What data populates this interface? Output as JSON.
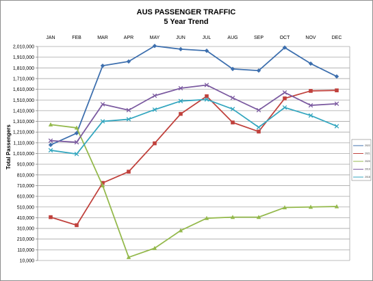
{
  "chart_data": {
    "type": "line",
    "title": "AUS PASSENGER TRAFFIC",
    "subtitle": "5 Year Trend",
    "xlabel": "",
    "ylabel": "Total Passengers",
    "categories": [
      "JAN",
      "FEB",
      "MAR",
      "APR",
      "MAY",
      "JUN",
      "JUL",
      "AUG",
      "SEP",
      "OCT",
      "NOV",
      "DEC"
    ],
    "ylim": [
      10000,
      2010000
    ],
    "yticks": [
      10000,
      110000,
      210000,
      310000,
      410000,
      510000,
      610000,
      710000,
      810000,
      910000,
      1010000,
      1110000,
      1210000,
      1310000,
      1410000,
      1510000,
      1610000,
      1710000,
      1810000,
      1910000,
      2010000
    ],
    "ytick_labels": [
      "10,000",
      "110,000",
      "210,000",
      "310,000",
      "410,000",
      "510,000",
      "610,000",
      "710,000",
      "810,000",
      "910,000",
      "1,010,000",
      "1,110,000",
      "1,210,000",
      "1,310,000",
      "1,410,000",
      "1,510,000",
      "1,610,000",
      "1,710,000",
      "1,810,000",
      "1,910,000",
      "2,010,000"
    ],
    "grid": true,
    "legend_position": "right",
    "series": [
      {
        "name": "2022",
        "color": "#3d6fae",
        "marker": "diamond",
        "values": [
          1090000,
          1200000,
          1830000,
          1870000,
          2015000,
          1985000,
          1970000,
          1800000,
          1785000,
          2000000,
          1850000,
          1730000
        ]
      },
      {
        "name": "2021",
        "color": "#c0413c",
        "marker": "square",
        "values": [
          415000,
          340000,
          735000,
          840000,
          1105000,
          1380000,
          1545000,
          1300000,
          1215000,
          1525000,
          1595000,
          1600000
        ]
      },
      {
        "name": "2020",
        "color": "#94b94c",
        "marker": "triangle",
        "values": [
          1280000,
          1250000,
          710000,
          40000,
          125000,
          290000,
          405000,
          415000,
          415000,
          505000,
          510000,
          515000
        ]
      },
      {
        "name": "2019",
        "color": "#7b5aa0",
        "marker": "x",
        "values": [
          1130000,
          1115000,
          1470000,
          1415000,
          1550000,
          1620000,
          1650000,
          1530000,
          1415000,
          1580000,
          1460000,
          1475000
        ]
      },
      {
        "name": "2018",
        "color": "#33a6bf",
        "marker": "x",
        "values": [
          1040000,
          1005000,
          1310000,
          1330000,
          1420000,
          1500000,
          1515000,
          1425000,
          1255000,
          1440000,
          1365000,
          1265000
        ]
      }
    ]
  }
}
